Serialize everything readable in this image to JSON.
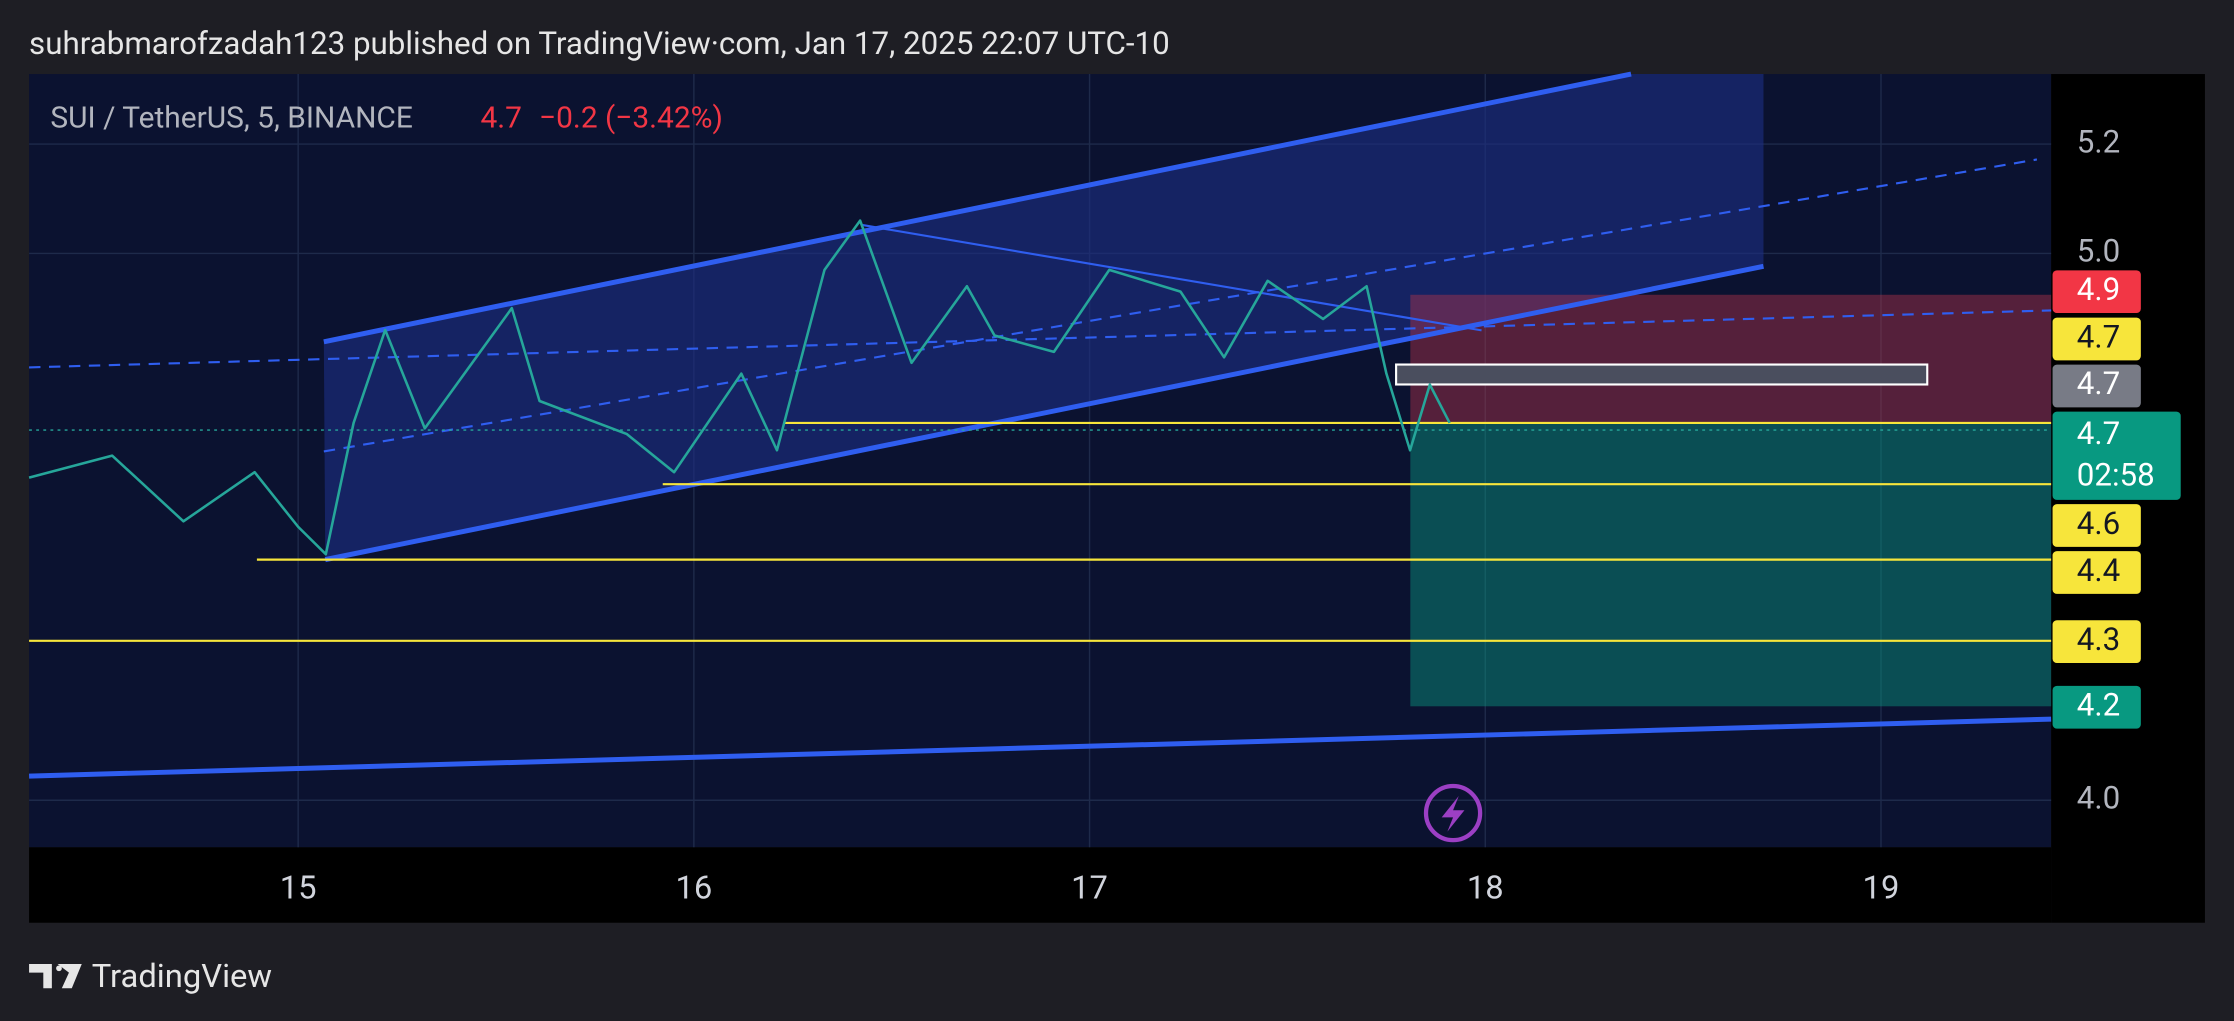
{
  "chart_data": {
    "type": "line",
    "title": "suhrabmarofzadah123 published on TradingView·com, Jan 17, 2025 22:07 UTC-10",
    "symbol": "SUI / TetherUS, 5, BINANCE",
    "last_price": "4.7",
    "change": "−0.2 (−3.42%)",
    "brand": "TradingView",
    "countdown": "02:58",
    "x": [
      14.32,
      14.53,
      14.71,
      14.89,
      15.0,
      15.07,
      15.14,
      15.22,
      15.32,
      15.54,
      15.61,
      15.83,
      15.95,
      16.12,
      16.21,
      16.33,
      16.42,
      16.55,
      16.69,
      16.76,
      16.91,
      17.05,
      17.23,
      17.34,
      17.45,
      17.59,
      17.7,
      17.75,
      17.81,
      17.86,
      17.91
    ],
    "series": [
      {
        "name": "SUI / TetherUS",
        "color": "#26a69a",
        "values": [
          4.59,
          4.63,
          4.51,
          4.6,
          4.5,
          4.45,
          4.69,
          4.86,
          4.68,
          4.9,
          4.73,
          4.67,
          4.6,
          4.78,
          4.64,
          4.97,
          5.06,
          4.8,
          4.94,
          4.85,
          4.82,
          4.97,
          4.93,
          4.81,
          4.95,
          4.88,
          4.94,
          4.78,
          4.64,
          4.76,
          4.69
        ]
      }
    ],
    "xlim": [
      14.32,
      19.43
    ],
    "xticks": [
      15,
      16,
      17,
      18,
      19
    ],
    "ylim": [
      3.914,
      5.328
    ],
    "yticks": [
      {
        "value": 4,
        "label": "4.0"
      },
      {
        "value": 5,
        "label": "5.0"
      },
      5.2
    ],
    "grid": true,
    "price_levels": [
      {
        "label": "4.9",
        "value": 4.93,
        "color": "#f23645"
      },
      {
        "label": "4.7",
        "value": 4.69,
        "color": "#f7e53b"
      },
      {
        "label": "4.7",
        "value": 4.74,
        "color": "#787b86"
      },
      {
        "label": "4.7",
        "value": 4.7,
        "color": "#089981"
      },
      {
        "label": "4.6",
        "value": 4.58,
        "color": "#f7e53b"
      },
      {
        "label": "4.4",
        "value": 4.44,
        "color": "#f7e53b"
      },
      {
        "label": "4.3",
        "value": 4.29,
        "color": "#f7e53b"
      },
      {
        "label": "4.2",
        "value": 4.17,
        "color": "#089981"
      }
    ]
  }
}
